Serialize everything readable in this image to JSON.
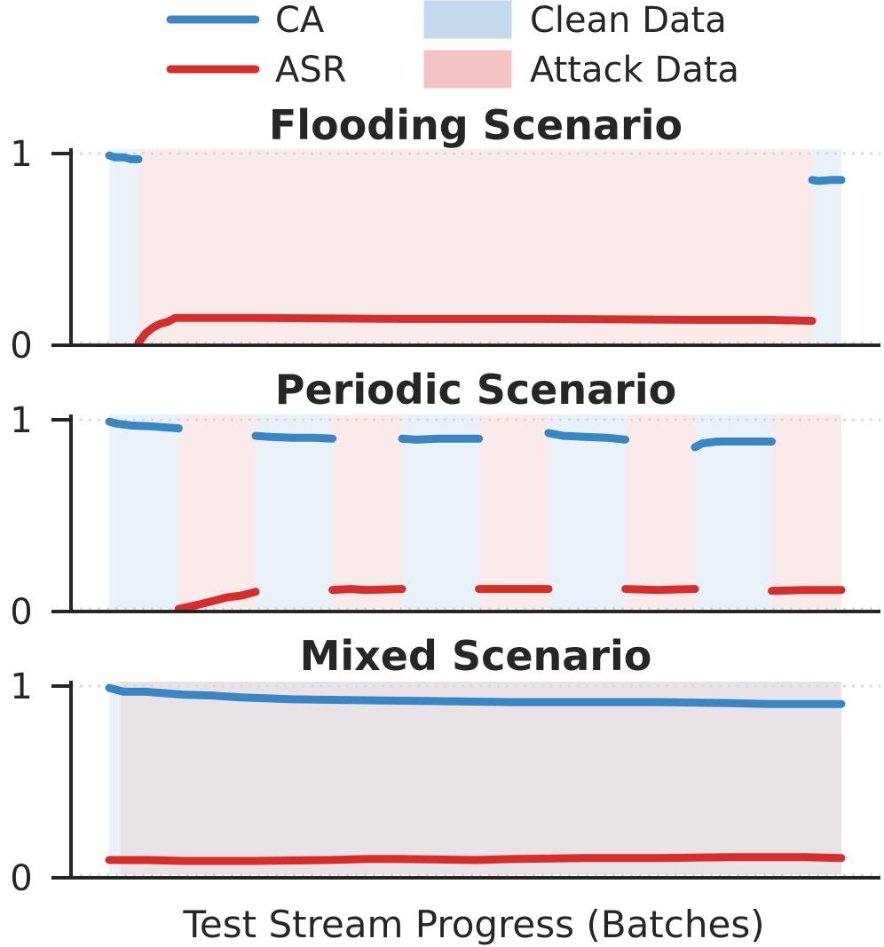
{
  "chart_data": {
    "type": "line",
    "xlabel": "Test Stream Progress (Batches)",
    "colors": {
      "ca": "#3a86c4",
      "asr": "#d62d2d",
      "clean_region": "#c2d9ee",
      "attack_region": "#f4c3c3",
      "axis": "#262626",
      "grid": "#d9d9d9"
    },
    "legend": {
      "placement": "top",
      "entries": [
        {
          "label": "CA",
          "kind": "line",
          "color_key": "ca"
        },
        {
          "label": "Clean Data",
          "kind": "patch",
          "color_key": "clean_region"
        },
        {
          "label": "ASR",
          "kind": "line",
          "color_key": "asr"
        },
        {
          "label": "Attack Data",
          "kind": "patch",
          "color_key": "attack_region"
        }
      ]
    },
    "panels": [
      {
        "title": "Flooding Scenario",
        "x_range": [
          0,
          100
        ],
        "ylim": [
          0,
          1
        ],
        "yticks": [
          "0",
          "1"
        ],
        "grid": "horizontal dotted",
        "regions": [
          {
            "type": "clean",
            "x": [
              0,
              4
            ]
          },
          {
            "type": "attack",
            "x": [
              4,
              96
            ]
          },
          {
            "type": "clean",
            "x": [
              96,
              100
            ]
          }
        ],
        "series": [
          {
            "name": "CA",
            "segments": [
              [
                [
                  0,
                  0.99
                ],
                [
                  0.8,
                  0.98
                ],
                [
                  2,
                  0.98
                ],
                [
                  3,
                  0.97
                ],
                [
                  4,
                  0.97
                ]
              ],
              [
                [
                  96,
                  0.86
                ],
                [
                  97,
                  0.855
                ],
                [
                  98.5,
                  0.86
                ],
                [
                  100,
                  0.86
                ]
              ]
            ]
          },
          {
            "name": "ASR",
            "segments": [
              [
                [
                  4,
                  0.0
                ],
                [
                  5,
                  0.05
                ],
                [
                  6,
                  0.08
                ],
                [
                  7,
                  0.1
                ],
                [
                  8,
                  0.11
                ],
                [
                  9,
                  0.13
                ],
                [
                  12,
                  0.13
                ],
                [
                  20,
                  0.13
                ],
                [
                  40,
                  0.125
                ],
                [
                  60,
                  0.125
                ],
                [
                  80,
                  0.12
                ],
                [
                  90,
                  0.12
                ],
                [
                  96,
                  0.115
                ]
              ]
            ]
          }
        ]
      },
      {
        "title": "Periodic Scenario",
        "x_range": [
          0,
          100
        ],
        "ylim": [
          0,
          1
        ],
        "yticks": [
          "0",
          "1"
        ],
        "grid": "horizontal dotted",
        "regions": [
          {
            "type": "clean",
            "x": [
              0,
              9.5
            ]
          },
          {
            "type": "attack",
            "x": [
              9.5,
              20
            ]
          },
          {
            "type": "clean",
            "x": [
              20,
              30.5
            ]
          },
          {
            "type": "attack",
            "x": [
              30.5,
              40
            ]
          },
          {
            "type": "clean",
            "x": [
              40,
              50.5
            ]
          },
          {
            "type": "attack",
            "x": [
              50.5,
              60
            ]
          },
          {
            "type": "clean",
            "x": [
              60,
              70.5
            ]
          },
          {
            "type": "attack",
            "x": [
              70.5,
              80
            ]
          },
          {
            "type": "clean",
            "x": [
              80,
              90.5
            ]
          },
          {
            "type": "attack",
            "x": [
              90.5,
              100
            ]
          }
        ],
        "series": [
          {
            "name": "CA",
            "segments": [
              [
                [
                  0,
                  0.99
                ],
                [
                  1,
                  0.98
                ],
                [
                  3,
                  0.97
                ],
                [
                  6,
                  0.965
                ],
                [
                  9.5,
                  0.955
                ]
              ],
              [
                [
                  20,
                  0.915
                ],
                [
                  22,
                  0.91
                ],
                [
                  25,
                  0.905
                ],
                [
                  28,
                  0.905
                ],
                [
                  30.5,
                  0.9
                ]
              ],
              [
                [
                  40,
                  0.9
                ],
                [
                  42,
                  0.895
                ],
                [
                  45,
                  0.9
                ],
                [
                  50.5,
                  0.9
                ]
              ],
              [
                [
                  60,
                  0.93
                ],
                [
                  62,
                  0.915
                ],
                [
                  65,
                  0.91
                ],
                [
                  68,
                  0.905
                ],
                [
                  70.5,
                  0.895
                ]
              ],
              [
                [
                  80,
                  0.855
                ],
                [
                  81,
                  0.875
                ],
                [
                  83,
                  0.885
                ],
                [
                  86,
                  0.885
                ],
                [
                  90.5,
                  0.885
                ]
              ]
            ]
          },
          {
            "name": "ASR",
            "segments": [
              [
                [
                  9.5,
                  0.0
                ],
                [
                  12,
                  0.02
                ],
                [
                  14,
                  0.04
                ],
                [
                  16,
                  0.06
                ],
                [
                  18,
                  0.07
                ],
                [
                  20,
                  0.09
                ]
              ],
              [
                [
                  30.5,
                  0.1
                ],
                [
                  33,
                  0.105
                ],
                [
                  35,
                  0.1
                ],
                [
                  40,
                  0.105
                ]
              ],
              [
                [
                  50.5,
                  0.105
                ],
                [
                  55,
                  0.105
                ],
                [
                  60,
                  0.105
                ]
              ],
              [
                [
                  70.5,
                  0.105
                ],
                [
                  75,
                  0.1
                ],
                [
                  80,
                  0.105
                ]
              ],
              [
                [
                  90.5,
                  0.095
                ],
                [
                  95,
                  0.1
                ],
                [
                  100,
                  0.1
                ]
              ]
            ]
          }
        ]
      },
      {
        "title": "Mixed Scenario",
        "x_range": [
          0,
          100
        ],
        "ylim": [
          0,
          1
        ],
        "yticks": [
          "0",
          "1"
        ],
        "grid": "horizontal dotted",
        "regions": [
          {
            "type": "clean",
            "x": [
              0,
              1.5
            ]
          },
          {
            "type": "mixed",
            "x": [
              1.5,
              100
            ]
          }
        ],
        "series": [
          {
            "name": "CA",
            "segments": [
              [
                [
                  0,
                  0.99
                ],
                [
                  2,
                  0.97
                ],
                [
                  5,
                  0.97
                ],
                [
                  10,
                  0.955
                ],
                [
                  14,
                  0.95
                ],
                [
                  18,
                  0.94
                ],
                [
                  25,
                  0.93
                ],
                [
                  35,
                  0.925
                ],
                [
                  45,
                  0.92
                ],
                [
                  55,
                  0.915
                ],
                [
                  65,
                  0.915
                ],
                [
                  75,
                  0.915
                ],
                [
                  85,
                  0.91
                ],
                [
                  90,
                  0.905
                ],
                [
                  100,
                  0.905
                ]
              ]
            ]
          },
          {
            "name": "ASR",
            "segments": [
              [
                [
                  0,
                  0.08
                ],
                [
                  5,
                  0.08
                ],
                [
                  10,
                  0.075
                ],
                [
                  20,
                  0.075
                ],
                [
                  30,
                  0.08
                ],
                [
                  35,
                  0.085
                ],
                [
                  40,
                  0.085
                ],
                [
                  50,
                  0.08
                ],
                [
                  55,
                  0.085
                ],
                [
                  65,
                  0.09
                ],
                [
                  75,
                  0.09
                ],
                [
                  85,
                  0.095
                ],
                [
                  95,
                  0.095
                ],
                [
                  100,
                  0.09
                ]
              ]
            ]
          }
        ]
      }
    ]
  }
}
